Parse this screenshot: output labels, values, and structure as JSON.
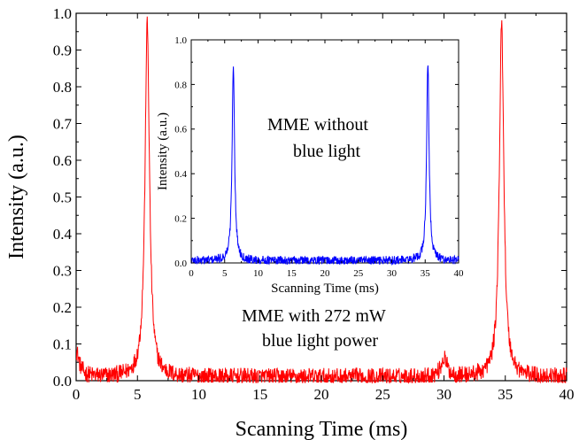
{
  "chart_data": [
    {
      "type": "line",
      "xlabel": "Scanning Time (ms)",
      "ylabel": "Intensity (a.u.)",
      "xlim": [
        0,
        40
      ],
      "ylim": [
        0,
        1.0
      ],
      "x_ticks": [
        0,
        5,
        10,
        15,
        20,
        25,
        30,
        35,
        40
      ],
      "y_ticks": [
        0.0,
        0.1,
        0.2,
        0.3,
        0.4,
        0.5,
        0.6,
        0.7,
        0.8,
        0.9,
        1.0
      ],
      "x_tick_labels": [
        "0",
        "5",
        "10",
        "15",
        "20",
        "25",
        "30",
        "35",
        "40"
      ],
      "y_tick_labels": [
        "0.0",
        "0.1",
        "0.2",
        "0.3",
        "0.4",
        "0.5",
        "0.6",
        "0.7",
        "0.8",
        "0.9",
        "1.0"
      ],
      "grid": false,
      "annotation": [
        "MME with 272 mW",
        "blue light power"
      ],
      "color": "#ff0000",
      "series": [
        {
          "baseline": 0.01,
          "noise": 0.03,
          "peaks": [
            {
              "x": 0.0,
              "height": 0.07
            },
            {
              "x": 5.8,
              "height": 0.96
            },
            {
              "x": 30.0,
              "height": 0.05
            },
            {
              "x": 34.7,
              "height": 0.96
            }
          ]
        }
      ]
    },
    {
      "type": "line",
      "xlabel": "Scanning Time (ms)",
      "ylabel": "Intensity (a.u.)",
      "xlim": [
        0,
        40
      ],
      "ylim": [
        0,
        1.0
      ],
      "x_ticks": [
        0,
        5,
        10,
        15,
        20,
        25,
        30,
        35,
        40
      ],
      "y_ticks": [
        0.0,
        0.2,
        0.4,
        0.6,
        0.8,
        1.0
      ],
      "x_tick_labels": [
        "0",
        "5",
        "10",
        "15",
        "20",
        "25",
        "30",
        "35",
        "40"
      ],
      "y_tick_labels": [
        "0.0",
        "0.2",
        "0.4",
        "0.6",
        "0.8",
        "1.0"
      ],
      "grid": false,
      "annotation": [
        "MME without",
        "blue light"
      ],
      "color": "#0000ff",
      "series": [
        {
          "baseline": 0.01,
          "noise": 0.025,
          "peaks": [
            {
              "x": 6.3,
              "height": 0.88
            },
            {
              "x": 35.4,
              "height": 0.89
            }
          ]
        }
      ]
    }
  ]
}
